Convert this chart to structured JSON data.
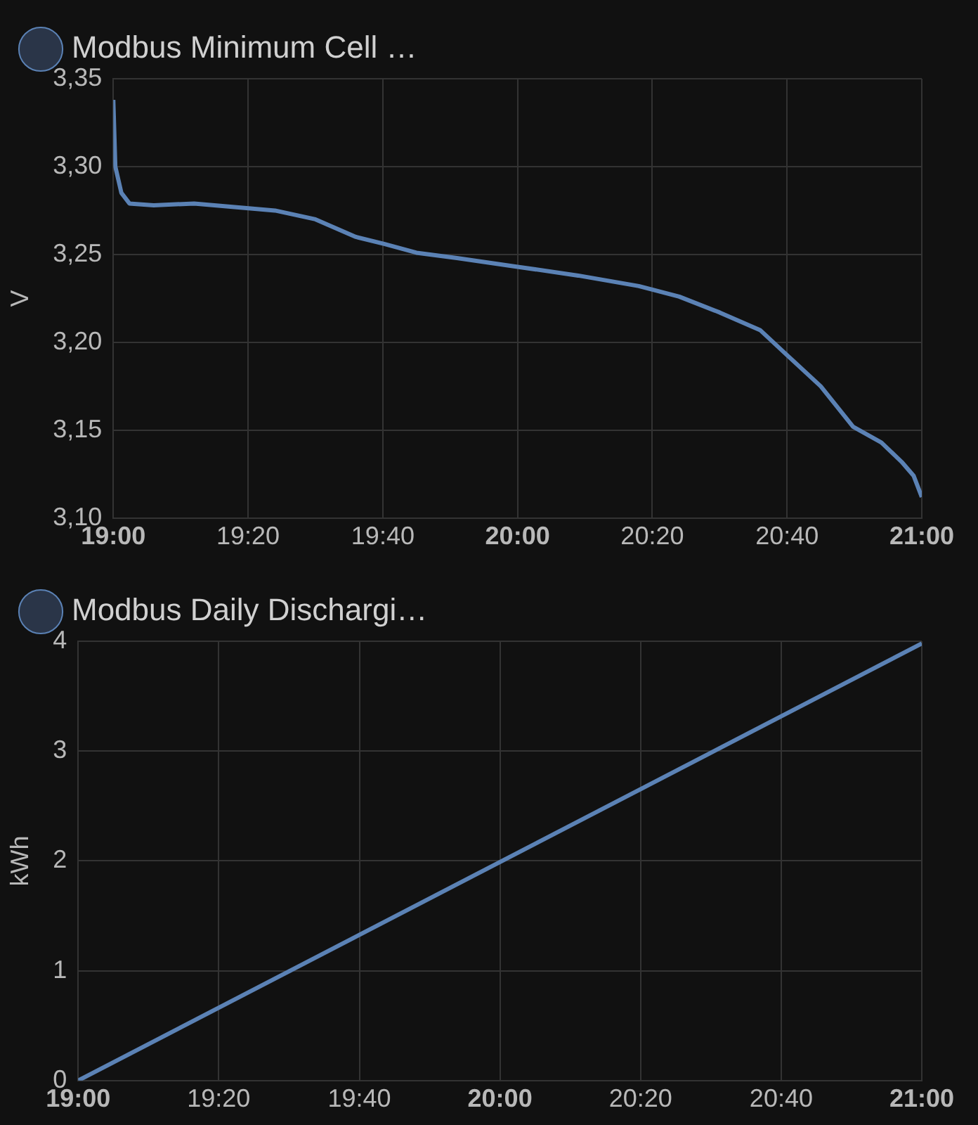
{
  "chart_data": [
    {
      "type": "line",
      "ylabel": "V",
      "legend": "top left",
      "grid": true,
      "marker": "none",
      "line_style": "solid",
      "xlim": [
        19,
        21
      ],
      "xticks": [
        {
          "value": 19,
          "label": "19:00"
        },
        {
          "value": 19.3333,
          "label": "19:20"
        },
        {
          "value": 19.6667,
          "label": "19:40"
        },
        {
          "value": 20,
          "label": "20:00"
        },
        {
          "value": 20.3333,
          "label": "20:20"
        },
        {
          "value": 20.6667,
          "label": "20:40"
        },
        {
          "value": 21,
          "label": "21:00"
        }
      ],
      "ylim": [
        3.1,
        3.35
      ],
      "yticks": [
        {
          "value": 3.1,
          "label": "3,10"
        },
        {
          "value": 3.15,
          "label": "3,15"
        },
        {
          "value": 3.2,
          "label": "3,20"
        },
        {
          "value": 3.25,
          "label": "3,25"
        },
        {
          "value": 3.3,
          "label": "3,30"
        },
        {
          "value": 3.35,
          "label": "3,35"
        }
      ],
      "series": [
        {
          "name": "Modbus Minimum Cell …",
          "color": "#5b82b5",
          "x": [
            19,
            19.005,
            19.02,
            19.04,
            19.1,
            19.2,
            19.3,
            19.4,
            19.5,
            19.55,
            19.6,
            19.67,
            19.75,
            19.85,
            20,
            20.15,
            20.3,
            20.4,
            20.5,
            20.6,
            20.67,
            20.75,
            20.83,
            20.9,
            20.95,
            20.98,
            21
          ],
          "values": [
            3.338,
            3.3,
            3.285,
            3.279,
            3.278,
            3.279,
            3.277,
            3.275,
            3.27,
            3.265,
            3.26,
            3.256,
            3.251,
            3.248,
            3.243,
            3.238,
            3.232,
            3.226,
            3.217,
            3.207,
            3.192,
            3.175,
            3.152,
            3.143,
            3.132,
            3.124,
            3.112
          ]
        }
      ]
    },
    {
      "type": "line",
      "ylabel": "kWh",
      "legend": "top left",
      "grid": true,
      "marker": "none",
      "line_style": "solid",
      "xlim": [
        19,
        21
      ],
      "xticks": [
        {
          "value": 19,
          "label": "19:00"
        },
        {
          "value": 19.3333,
          "label": "19:20"
        },
        {
          "value": 19.6667,
          "label": "19:40"
        },
        {
          "value": 20,
          "label": "20:00"
        },
        {
          "value": 20.3333,
          "label": "20:20"
        },
        {
          "value": 20.6667,
          "label": "20:40"
        },
        {
          "value": 21,
          "label": "21:00"
        }
      ],
      "ylim": [
        0,
        4
      ],
      "yticks": [
        0,
        1,
        2,
        3,
        4
      ],
      "series": [
        {
          "name": "Modbus Daily Dischargi…",
          "color": "#5b82b5",
          "x": [
            19,
            21
          ],
          "values": [
            0,
            3.98
          ]
        }
      ]
    }
  ]
}
